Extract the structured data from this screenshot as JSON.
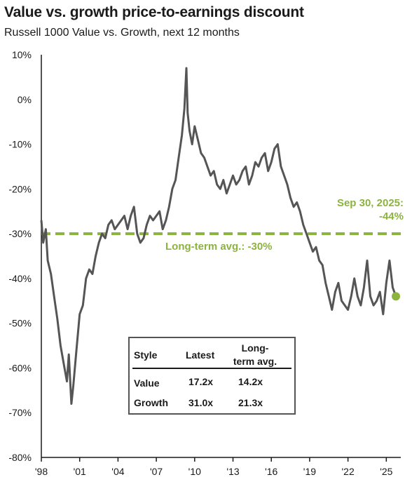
{
  "title": "Value vs. growth price-to-earnings discount",
  "subtitle": "Russell 1000 Value vs. Growth, next 12 months",
  "chart_data": {
    "type": "line",
    "title": "Value vs. growth price-to-earnings discount",
    "subtitle": "Russell 1000 Value vs. Growth, next 12 months",
    "y_ticks": [
      "10%",
      "0%",
      "-10%",
      "-20%",
      "-30%",
      "-40%",
      "-50%",
      "-60%",
      "-70%",
      "-80%"
    ],
    "y_tick_values": [
      10,
      0,
      -10,
      -20,
      -30,
      -40,
      -50,
      -60,
      -70,
      -80
    ],
    "x_ticks": [
      "'98",
      "'01",
      "'04",
      "'07",
      "'10",
      "'13",
      "'16",
      "'19",
      "'22",
      "'25"
    ],
    "x_tick_values": [
      1998,
      2001,
      2004,
      2007,
      2010,
      2013,
      2016,
      2019,
      2022,
      2025
    ],
    "xlim": [
      1998,
      2025.75
    ],
    "ylim": [
      -80,
      10
    ],
    "series": [
      {
        "color": "#555555",
        "points": [
          [
            1998.0,
            -27
          ],
          [
            1998.15,
            -32
          ],
          [
            1998.35,
            -29
          ],
          [
            1998.5,
            -36
          ],
          [
            1998.75,
            -39
          ],
          [
            1999.0,
            -44
          ],
          [
            1999.25,
            -49
          ],
          [
            1999.5,
            -55
          ],
          [
            1999.75,
            -59
          ],
          [
            2000.0,
            -63
          ],
          [
            2000.15,
            -57
          ],
          [
            2000.35,
            -68
          ],
          [
            2000.5,
            -64
          ],
          [
            2000.75,
            -56
          ],
          [
            2001.0,
            -48
          ],
          [
            2001.25,
            -46
          ],
          [
            2001.5,
            -40
          ],
          [
            2001.75,
            -38
          ],
          [
            2002.0,
            -39
          ],
          [
            2002.25,
            -35
          ],
          [
            2002.5,
            -32
          ],
          [
            2002.75,
            -30
          ],
          [
            2003.0,
            -31
          ],
          [
            2003.25,
            -28
          ],
          [
            2003.5,
            -27
          ],
          [
            2003.75,
            -29
          ],
          [
            2004.0,
            -28
          ],
          [
            2004.25,
            -27
          ],
          [
            2004.5,
            -26
          ],
          [
            2004.75,
            -29
          ],
          [
            2005.0,
            -26
          ],
          [
            2005.25,
            -24
          ],
          [
            2005.5,
            -30
          ],
          [
            2005.75,
            -32
          ],
          [
            2006.0,
            -31
          ],
          [
            2006.25,
            -28
          ],
          [
            2006.5,
            -26
          ],
          [
            2006.75,
            -27
          ],
          [
            2007.0,
            -26
          ],
          [
            2007.25,
            -25
          ],
          [
            2007.5,
            -29
          ],
          [
            2007.75,
            -27
          ],
          [
            2008.0,
            -24
          ],
          [
            2008.25,
            -20
          ],
          [
            2008.5,
            -18
          ],
          [
            2008.75,
            -13
          ],
          [
            2009.0,
            -8
          ],
          [
            2009.2,
            -2
          ],
          [
            2009.35,
            7
          ],
          [
            2009.45,
            -3
          ],
          [
            2009.6,
            -7
          ],
          [
            2009.8,
            -10
          ],
          [
            2010.0,
            -6
          ],
          [
            2010.25,
            -9
          ],
          [
            2010.5,
            -12
          ],
          [
            2010.75,
            -13
          ],
          [
            2011.0,
            -15
          ],
          [
            2011.25,
            -17
          ],
          [
            2011.5,
            -16
          ],
          [
            2011.75,
            -19
          ],
          [
            2012.0,
            -20
          ],
          [
            2012.25,
            -18
          ],
          [
            2012.5,
            -21
          ],
          [
            2012.75,
            -19
          ],
          [
            2013.0,
            -17
          ],
          [
            2013.25,
            -19
          ],
          [
            2013.5,
            -18
          ],
          [
            2013.75,
            -16
          ],
          [
            2014.0,
            -15
          ],
          [
            2014.25,
            -19
          ],
          [
            2014.5,
            -17
          ],
          [
            2014.75,
            -14
          ],
          [
            2015.0,
            -15
          ],
          [
            2015.25,
            -13
          ],
          [
            2015.5,
            -12
          ],
          [
            2015.75,
            -16
          ],
          [
            2016.0,
            -14
          ],
          [
            2016.25,
            -11
          ],
          [
            2016.5,
            -10
          ],
          [
            2016.75,
            -15
          ],
          [
            2017.0,
            -17
          ],
          [
            2017.25,
            -19
          ],
          [
            2017.5,
            -22
          ],
          [
            2017.75,
            -24
          ],
          [
            2018.0,
            -23
          ],
          [
            2018.25,
            -25
          ],
          [
            2018.5,
            -28
          ],
          [
            2018.75,
            -30
          ],
          [
            2019.0,
            -32
          ],
          [
            2019.25,
            -34
          ],
          [
            2019.5,
            -33
          ],
          [
            2019.75,
            -36
          ],
          [
            2020.0,
            -37
          ],
          [
            2020.25,
            -41
          ],
          [
            2020.5,
            -44
          ],
          [
            2020.75,
            -47
          ],
          [
            2021.0,
            -43
          ],
          [
            2021.25,
            -41
          ],
          [
            2021.5,
            -45
          ],
          [
            2021.75,
            -46
          ],
          [
            2022.0,
            -47
          ],
          [
            2022.25,
            -44
          ],
          [
            2022.5,
            -40
          ],
          [
            2022.75,
            -44
          ],
          [
            2023.0,
            -46
          ],
          [
            2023.25,
            -42
          ],
          [
            2023.5,
            -36
          ],
          [
            2023.75,
            -44
          ],
          [
            2024.0,
            -46
          ],
          [
            2024.25,
            -45
          ],
          [
            2024.5,
            -43
          ],
          [
            2024.75,
            -48
          ],
          [
            2025.0,
            -41
          ],
          [
            2025.25,
            -36
          ],
          [
            2025.5,
            -42
          ],
          [
            2025.75,
            -44
          ]
        ]
      }
    ],
    "reference_line": {
      "value": -30,
      "label": "Long-term avg.: -30%",
      "color": "#8db33f",
      "style": "dashed"
    },
    "callout": {
      "x": 2025.75,
      "y": -44,
      "label_line1": "Sep 30, 2025:",
      "label_line2": "-44%",
      "color": "#8db33f"
    },
    "grid": false,
    "legend": "none"
  },
  "table": {
    "headers": [
      "Style",
      "Latest",
      "Long-term avg."
    ],
    "header_long_line1": "Long-",
    "header_long_line2": "term avg.",
    "rows": [
      [
        "Value",
        "17.2x",
        "14.2x"
      ],
      [
        "Growth",
        "31.0x",
        "21.3x"
      ]
    ]
  },
  "colors": {
    "series": "#555555",
    "accent": "#8db33f"
  }
}
